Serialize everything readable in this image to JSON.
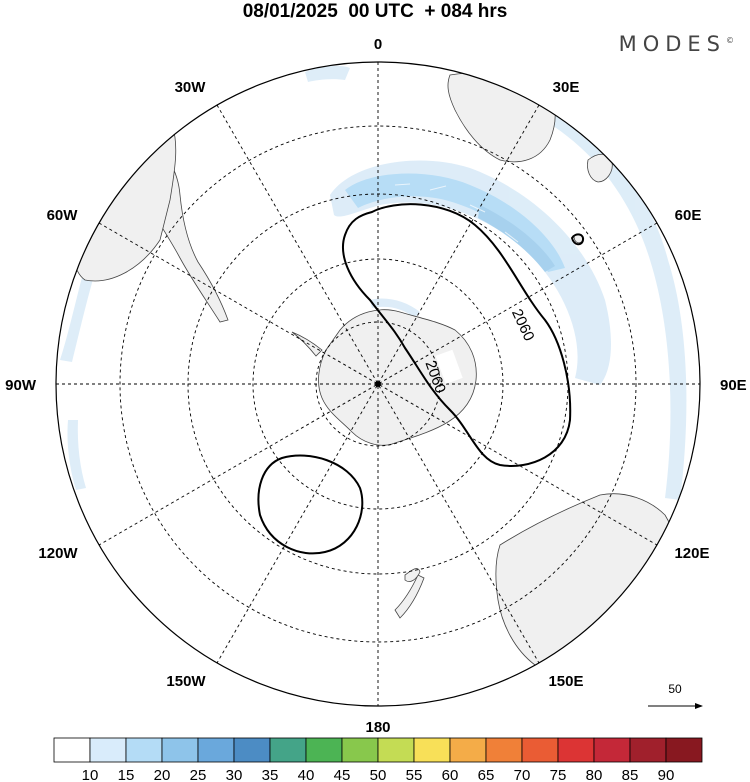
{
  "header": {
    "title": "08/01/2025  00 UTC  + 084 hrs",
    "brand": "MODES",
    "brand_mark": "©"
  },
  "map": {
    "projection": "south-polar-stereographic",
    "longitude_labels": {
      "top": "0",
      "bottom": "180",
      "right": "90E",
      "left": "90W",
      "l30e": "30E",
      "l60e": "60E",
      "l120e": "120E",
      "l150e": "150E",
      "l30w": "30W",
      "l60w": "60W",
      "l120w": "120W",
      "l150w": "150W"
    },
    "contour_labels": [
      "2060",
      "2060"
    ],
    "reference_vector": "50",
    "colors": {
      "land": "#f0f0f0",
      "ocean": "#ffffff",
      "wind_10_15": "#dcecf8",
      "wind_15_20": "#bcdcf4",
      "wind_20_25": "#a3cfee",
      "grid": "#000000"
    }
  },
  "colorbar": {
    "labels": [
      "10",
      "15",
      "20",
      "25",
      "30",
      "35",
      "40",
      "45",
      "50",
      "55",
      "60",
      "65",
      "70",
      "75",
      "80",
      "85",
      "90"
    ],
    "colors": [
      "#ffffff",
      "#d9ecfb",
      "#b4dcf6",
      "#8ec4ea",
      "#6aa8dc",
      "#4c8cc4",
      "#44a488",
      "#4cb454",
      "#88c84c",
      "#c4dc54",
      "#f8e058",
      "#f4ac48",
      "#f08038",
      "#ea5c34",
      "#dc3434",
      "#c42838",
      "#a0202c",
      "#881820"
    ]
  }
}
